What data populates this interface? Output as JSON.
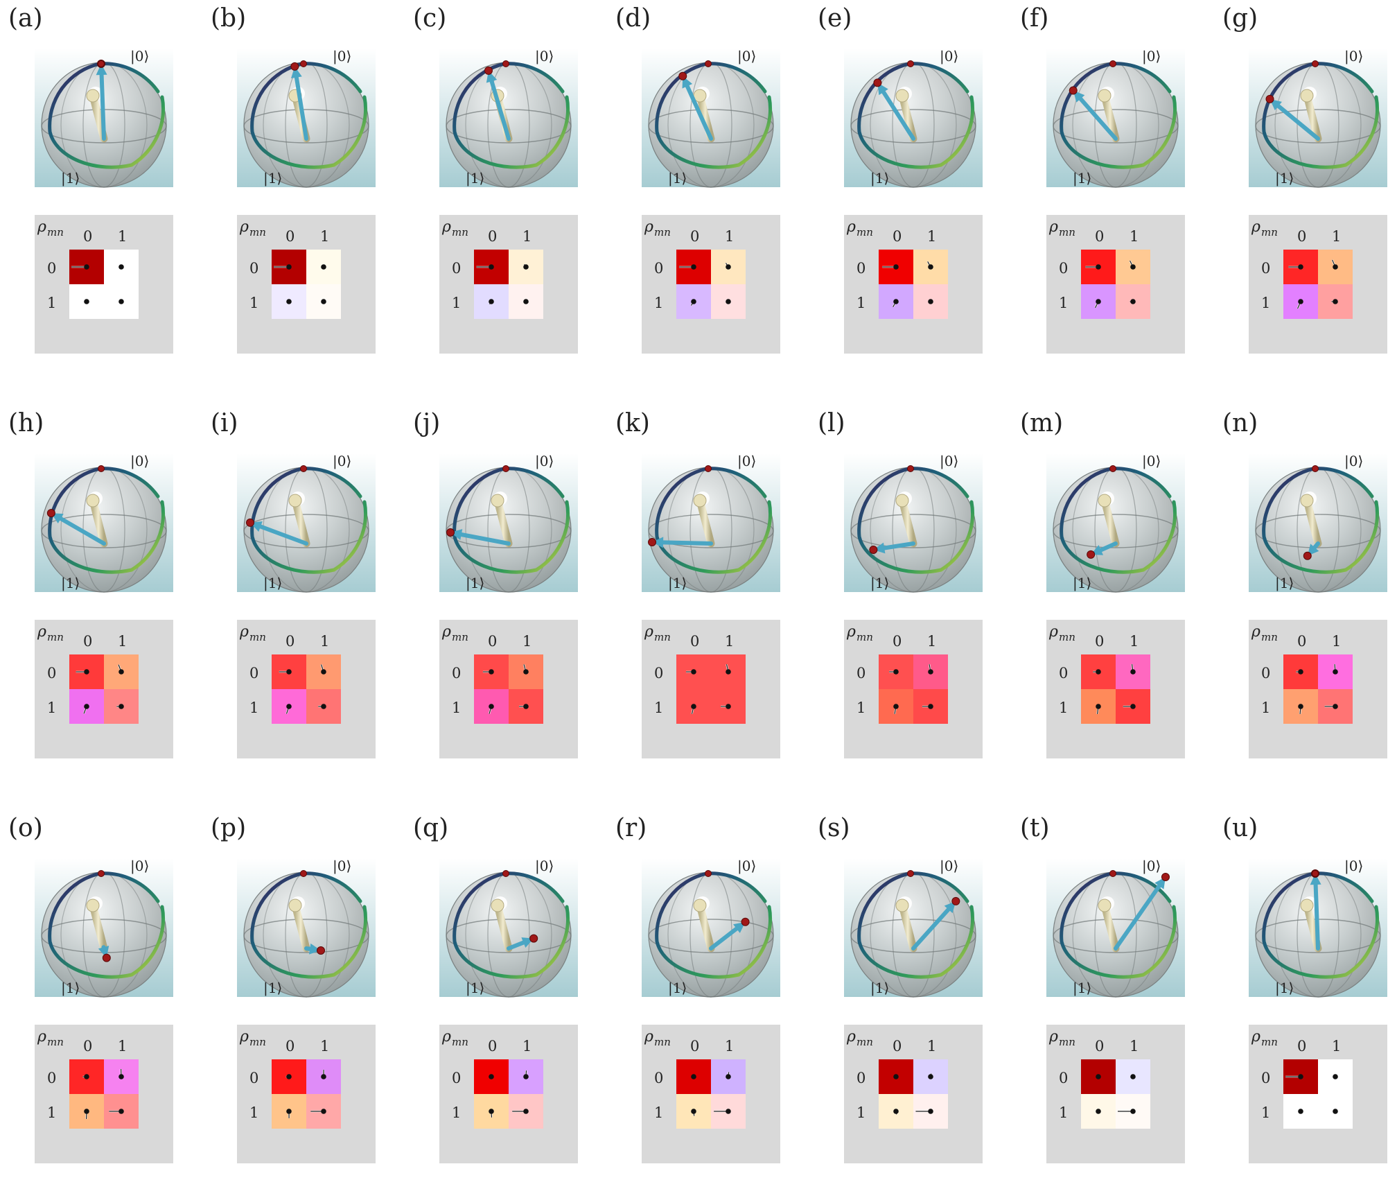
{
  "panels": [
    {
      "label": "(a)",
      "theta": 0,
      "cells": [
        [
          "#b30000",
          "#ffffff"
        ],
        [
          "#ffffff",
          "#ffffff"
        ]
      ],
      "arrows": [
        1,
        0,
        0,
        0
      ]
    },
    {
      "label": "(b)",
      "theta": 9,
      "cells": [
        [
          "#b30000",
          "#fffbec"
        ],
        [
          "#efeaff",
          "#fffbf6"
        ]
      ],
      "arrows": [
        1,
        0.1,
        0.1,
        0
      ]
    },
    {
      "label": "(c)",
      "theta": 18,
      "cells": [
        [
          "#c20000",
          "#fff1d6"
        ],
        [
          "#e2dcff",
          "#fff2f0"
        ]
      ],
      "arrows": [
        0.98,
        0.2,
        0.2,
        0.05
      ]
    },
    {
      "label": "(d)",
      "theta": 27,
      "cells": [
        [
          "#dd0000",
          "#ffe7bf"
        ],
        [
          "#d8b9ff",
          "#ffdfe0"
        ]
      ],
      "arrows": [
        0.95,
        0.3,
        0.3,
        0.1
      ]
    },
    {
      "label": "(e)",
      "theta": 36,
      "cells": [
        [
          "#f00000",
          "#ffdca8"
        ],
        [
          "#d2a8ff",
          "#ffd0d2"
        ]
      ],
      "arrows": [
        0.9,
        0.4,
        0.4,
        0.15
      ]
    },
    {
      "label": "(f)",
      "theta": 45,
      "cells": [
        [
          "#ff1a1a",
          "#ffc993"
        ],
        [
          "#d995ff",
          "#ffb9b9"
        ]
      ],
      "arrows": [
        0.85,
        0.45,
        0.45,
        0.2
      ]
    },
    {
      "label": "(g)",
      "theta": 54,
      "cells": [
        [
          "#ff2626",
          "#ffbb85"
        ],
        [
          "#e380ff",
          "#ffa0a0"
        ]
      ],
      "arrows": [
        0.8,
        0.5,
        0.5,
        0.25
      ]
    },
    {
      "label": "(h)",
      "theta": 63,
      "cells": [
        [
          "#ff3a3a",
          "#ffa878"
        ],
        [
          "#f070f0",
          "#ff8686"
        ]
      ],
      "arrows": [
        0.7,
        0.5,
        0.5,
        0.3
      ]
    },
    {
      "label": "(i)",
      "theta": 72,
      "cells": [
        [
          "#ff4040",
          "#ff9a70"
        ],
        [
          "#ff6ad8",
          "#ff7474"
        ]
      ],
      "arrows": [
        0.65,
        0.5,
        0.5,
        0.35
      ]
    },
    {
      "label": "(j)",
      "theta": 81,
      "cells": [
        [
          "#ff4a4a",
          "#ff8060"
        ],
        [
          "#ff5ab0",
          "#ff5050"
        ]
      ],
      "arrows": [
        0.55,
        0.5,
        0.5,
        0.45
      ]
    },
    {
      "label": "(k)",
      "theta": 90,
      "cells": [
        [
          "#ff5050",
          "#ff5050"
        ],
        [
          "#ff5050",
          "#ff5050"
        ]
      ],
      "arrows": [
        0.5,
        0.5,
        0.5,
        0.5
      ]
    },
    {
      "label": "(l)",
      "theta": 99,
      "cells": [
        [
          "#ff5050",
          "#ff5a8a"
        ],
        [
          "#ff6a50",
          "#ff4a4a"
        ]
      ],
      "arrows": [
        0.45,
        0.5,
        0.5,
        0.55
      ]
    },
    {
      "label": "(m)",
      "theta": 108,
      "cells": [
        [
          "#ff4040",
          "#ff68c0"
        ],
        [
          "#ff8a5a",
          "#ff4040"
        ]
      ],
      "arrows": [
        0.35,
        0.5,
        0.5,
        0.65
      ]
    },
    {
      "label": "(n)",
      "theta": 117,
      "cells": [
        [
          "#ff3a3a",
          "#ff6ee0"
        ],
        [
          "#ffa070",
          "#ff7474"
        ]
      ],
      "arrows": [
        0.3,
        0.5,
        0.5,
        0.7
      ]
    },
    {
      "label": "(o)",
      "theta": 126,
      "cells": [
        [
          "#ff2626",
          "#f682f0"
        ],
        [
          "#ffb880",
          "#ff9090"
        ]
      ],
      "arrows": [
        0.25,
        0.5,
        0.5,
        0.8
      ]
    },
    {
      "label": "(p)",
      "theta": 135,
      "cells": [
        [
          "#ff1a1a",
          "#df8cf8"
        ],
        [
          "#ffc48a",
          "#ffa8a8"
        ]
      ],
      "arrows": [
        0.2,
        0.45,
        0.45,
        0.85
      ]
    },
    {
      "label": "(q)",
      "theta": 144,
      "cells": [
        [
          "#f00000",
          "#d8a0ff"
        ],
        [
          "#ffd9a0",
          "#ffc6c6"
        ]
      ],
      "arrows": [
        0.15,
        0.4,
        0.4,
        0.9
      ]
    },
    {
      "label": "(r)",
      "theta": 153,
      "cells": [
        [
          "#dd0000",
          "#cfb2ff"
        ],
        [
          "#ffe6b8",
          "#ffdada"
        ]
      ],
      "arrows": [
        0.1,
        0.3,
        0.3,
        0.95
      ]
    },
    {
      "label": "(s)",
      "theta": 162,
      "cells": [
        [
          "#c20000",
          "#dcd2ff"
        ],
        [
          "#fff0d2",
          "#fff0ee"
        ]
      ],
      "arrows": [
        0.05,
        0.2,
        0.2,
        0.98
      ]
    },
    {
      "label": "(t)",
      "theta": 171,
      "cells": [
        [
          "#b30000",
          "#e8e6ff"
        ],
        [
          "#fff8e8",
          "#fffaf6"
        ]
      ],
      "arrows": [
        0,
        0.1,
        0.1,
        1
      ]
    },
    {
      "label": "(u)",
      "theta": 180,
      "cells": [
        [
          "#b30000",
          "#ffffff"
        ],
        [
          "#ffffff",
          "#ffffff"
        ]
      ],
      "arrows": [
        1,
        0,
        0,
        0
      ]
    }
  ],
  "text": {
    "ket0": "|0⟩",
    "ket1": "|1⟩",
    "rho": "ρ",
    "rho_sub": "mn",
    "idx0": "0",
    "idx1": "1"
  },
  "colors": {
    "sky_top": "#ffffff",
    "sky_bottom": "#a6ccd2",
    "matrix_bg": "#d9d9d9",
    "state_arrow": "#4aa6c4",
    "marker": "#a01818",
    "axis_rod": "#d8d0a8"
  }
}
